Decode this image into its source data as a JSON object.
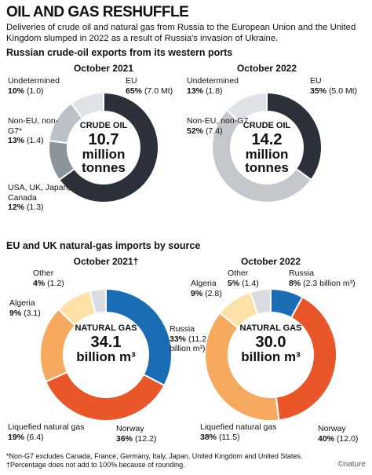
{
  "title": "OIL AND GAS RESHUFFLE",
  "subtitle": "Deliveries of crude oil and natural gas from Russia to the European Union and the United Kingdom slumped in 2022 as a result of Russia's invasion of Ukraine.",
  "oil_heading": "Russian crude-oil exports from its western ports",
  "gas_heading": "EU and UK natural-gas imports by source",
  "footnote": "*Non-G7 excludes Canada, France, Germany, Italy, Japan, United Kingdom and United States. †Percentage does not add to 100% because of rounding.",
  "credit": "©nature",
  "chart_data": [
    {
      "type": "pie",
      "title": "October 2021",
      "center_title": "CRUDE OIL",
      "total": 10.7,
      "total_label": "10.7",
      "center_unit": "million tonnes",
      "categories": [
        "EU",
        "USA, UK, Japan, Canada",
        "Non-EU, non-G7*",
        "Undetermined"
      ],
      "values": [
        65,
        12,
        13,
        10
      ],
      "value_labels": [
        "65%",
        "12%",
        "13%",
        "10%"
      ],
      "amounts": [
        7.0,
        1.3,
        1.4,
        1.0
      ],
      "amount_labels": [
        "(7.0 Mt)",
        "(1.3)",
        "(1.4)",
        "(1.0)"
      ],
      "colors": [
        "#2b303a",
        "#8b939b",
        "#bcc1c7",
        "#dfe2e6"
      ]
    },
    {
      "type": "pie",
      "title": "October 2022",
      "center_title": "CRUDE OIL",
      "total": 14.2,
      "total_label": "14.2",
      "center_unit": "million tonnes",
      "categories": [
        "EU",
        "Non-EU, non-G7",
        "Undetermined"
      ],
      "values": [
        35,
        52,
        13
      ],
      "value_labels": [
        "35%",
        "52%",
        "13%"
      ],
      "amounts": [
        5.0,
        7.4,
        1.8
      ],
      "amount_labels": [
        "(5.0 Mt)",
        "(7.4)",
        "(1.8)"
      ],
      "colors": [
        "#2b303a",
        "#c4c8cd",
        "#dfe2e6"
      ]
    },
    {
      "type": "pie",
      "title": "October 2021†",
      "center_title": "NATURAL GAS",
      "total": 34.1,
      "total_label": "34.1",
      "center_unit": "billion m³",
      "categories": [
        "Russia",
        "Norway",
        "Liquefied natural gas",
        "Algeria",
        "Other"
      ],
      "values": [
        33,
        36,
        19,
        9,
        4
      ],
      "value_labels": [
        "33%",
        "36%",
        "19%",
        "9%",
        "4%"
      ],
      "amounts": [
        11.2,
        12.2,
        6.4,
        3.1,
        1.2
      ],
      "amount_labels": [
        "(11.2 billion m³)",
        "(12.2)",
        "(6.4)",
        "(3.1)",
        "(1.2)"
      ],
      "colors": [
        "#1a6db5",
        "#e8562a",
        "#f5aa60",
        "#fde1a9",
        "#d9dce1"
      ]
    },
    {
      "type": "pie",
      "title": "October 2022",
      "center_title": "NATURAL GAS",
      "total": 30,
      "total_label": "30.0",
      "center_unit": "billion m³",
      "categories": [
        "Russia",
        "Norway",
        "Liquefied natural gas",
        "Algeria",
        "Other"
      ],
      "values": [
        8,
        40,
        38,
        9,
        5
      ],
      "value_labels": [
        "8%",
        "40%",
        "38%",
        "9%",
        "5%"
      ],
      "amounts": [
        2.3,
        12.0,
        11.5,
        2.8,
        1.4
      ],
      "amount_labels": [
        "(2.3 billion m³)",
        "(12.0)",
        "(11.5)",
        "(2.8)",
        "(1.4)"
      ],
      "colors": [
        "#1a6db5",
        "#e8562a",
        "#f5aa60",
        "#fde1a9",
        "#d9dce1"
      ]
    }
  ]
}
